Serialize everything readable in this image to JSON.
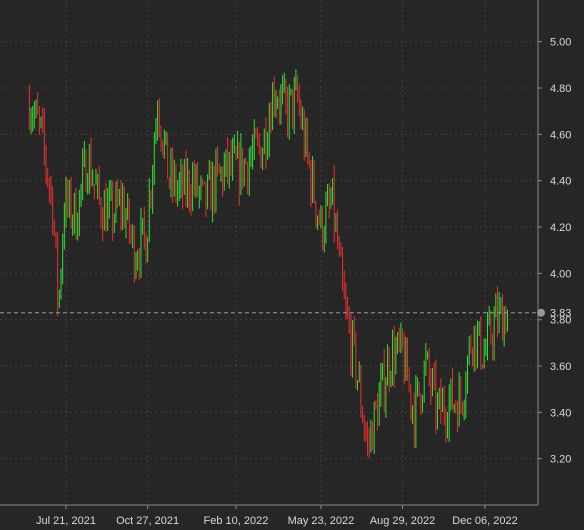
{
  "chart_data": {
    "type": "candlestick",
    "title": "",
    "xlabel": "",
    "ylabel": "",
    "ylim": [
      3.0,
      5.18
    ],
    "yticks": [
      3.2,
      3.4,
      3.6,
      3.8,
      4.0,
      4.2,
      4.4,
      4.6,
      4.8,
      5.0
    ],
    "ytick_labels": [
      "3.20",
      "3.40",
      "3.60",
      "3.80",
      "4.00",
      "4.20",
      "4.40",
      "4.60",
      "4.80",
      "5.00"
    ],
    "xticks": [
      {
        "date": "2021-07-21",
        "label": "Jul 21, 2021"
      },
      {
        "date": "2021-10-27",
        "label": "Oct 27, 2021"
      },
      {
        "date": "2022-02-10",
        "label": "Feb 10, 2022"
      },
      {
        "date": "2022-05-23",
        "label": "May 23, 2022"
      },
      {
        "date": "2022-08-29",
        "label": "Aug 29, 2022"
      },
      {
        "date": "2022-12-06",
        "label": "Dec 06, 2022"
      }
    ],
    "grid": true,
    "up_color": "#33e033",
    "down_color": "#e83030",
    "last_price": {
      "value": 3.83,
      "label": "3.83"
    },
    "series": [
      {
        "x": "2021-06-07",
        "y": 4.75
      },
      {
        "x": "2021-06-21",
        "y": 4.6
      },
      {
        "x": "2021-07-05",
        "y": 4.3
      },
      {
        "x": "2021-07-12",
        "y": 3.85
      },
      {
        "x": "2021-07-19",
        "y": 4.3
      },
      {
        "x": "2021-08-02",
        "y": 4.25
      },
      {
        "x": "2021-08-16",
        "y": 4.5
      },
      {
        "x": "2021-08-30",
        "y": 4.3
      },
      {
        "x": "2021-09-13",
        "y": 4.25
      },
      {
        "x": "2021-09-27",
        "y": 4.3
      },
      {
        "x": "2021-10-11",
        "y": 4.1
      },
      {
        "x": "2021-10-25",
        "y": 4.15
      },
      {
        "x": "2021-11-08",
        "y": 4.75
      },
      {
        "x": "2021-11-22",
        "y": 4.4
      },
      {
        "x": "2021-12-06",
        "y": 4.35
      },
      {
        "x": "2021-12-20",
        "y": 4.4
      },
      {
        "x": "2022-01-03",
        "y": 4.3
      },
      {
        "x": "2022-01-17",
        "y": 4.4
      },
      {
        "x": "2022-01-31",
        "y": 4.45
      },
      {
        "x": "2022-02-14",
        "y": 4.45
      },
      {
        "x": "2022-02-28",
        "y": 4.5
      },
      {
        "x": "2022-03-14",
        "y": 4.55
      },
      {
        "x": "2022-03-28",
        "y": 4.8
      },
      {
        "x": "2022-04-11",
        "y": 4.7
      },
      {
        "x": "2022-04-25",
        "y": 4.75
      },
      {
        "x": "2022-05-09",
        "y": 4.45
      },
      {
        "x": "2022-05-23",
        "y": 4.2
      },
      {
        "x": "2022-06-06",
        "y": 4.3
      },
      {
        "x": "2022-06-20",
        "y": 3.85
      },
      {
        "x": "2022-07-04",
        "y": 3.6
      },
      {
        "x": "2022-07-18",
        "y": 3.25
      },
      {
        "x": "2022-08-01",
        "y": 3.45
      },
      {
        "x": "2022-08-15",
        "y": 3.65
      },
      {
        "x": "2022-08-29",
        "y": 3.65
      },
      {
        "x": "2022-09-12",
        "y": 3.4
      },
      {
        "x": "2022-09-26",
        "y": 3.6
      },
      {
        "x": "2022-10-10",
        "y": 3.4
      },
      {
        "x": "2022-10-24",
        "y": 3.45
      },
      {
        "x": "2022-11-07",
        "y": 3.45
      },
      {
        "x": "2022-11-21",
        "y": 3.75
      },
      {
        "x": "2022-12-05",
        "y": 3.65
      },
      {
        "x": "2022-12-19",
        "y": 3.8
      },
      {
        "x": "2023-01-02",
        "y": 3.83
      }
    ]
  }
}
